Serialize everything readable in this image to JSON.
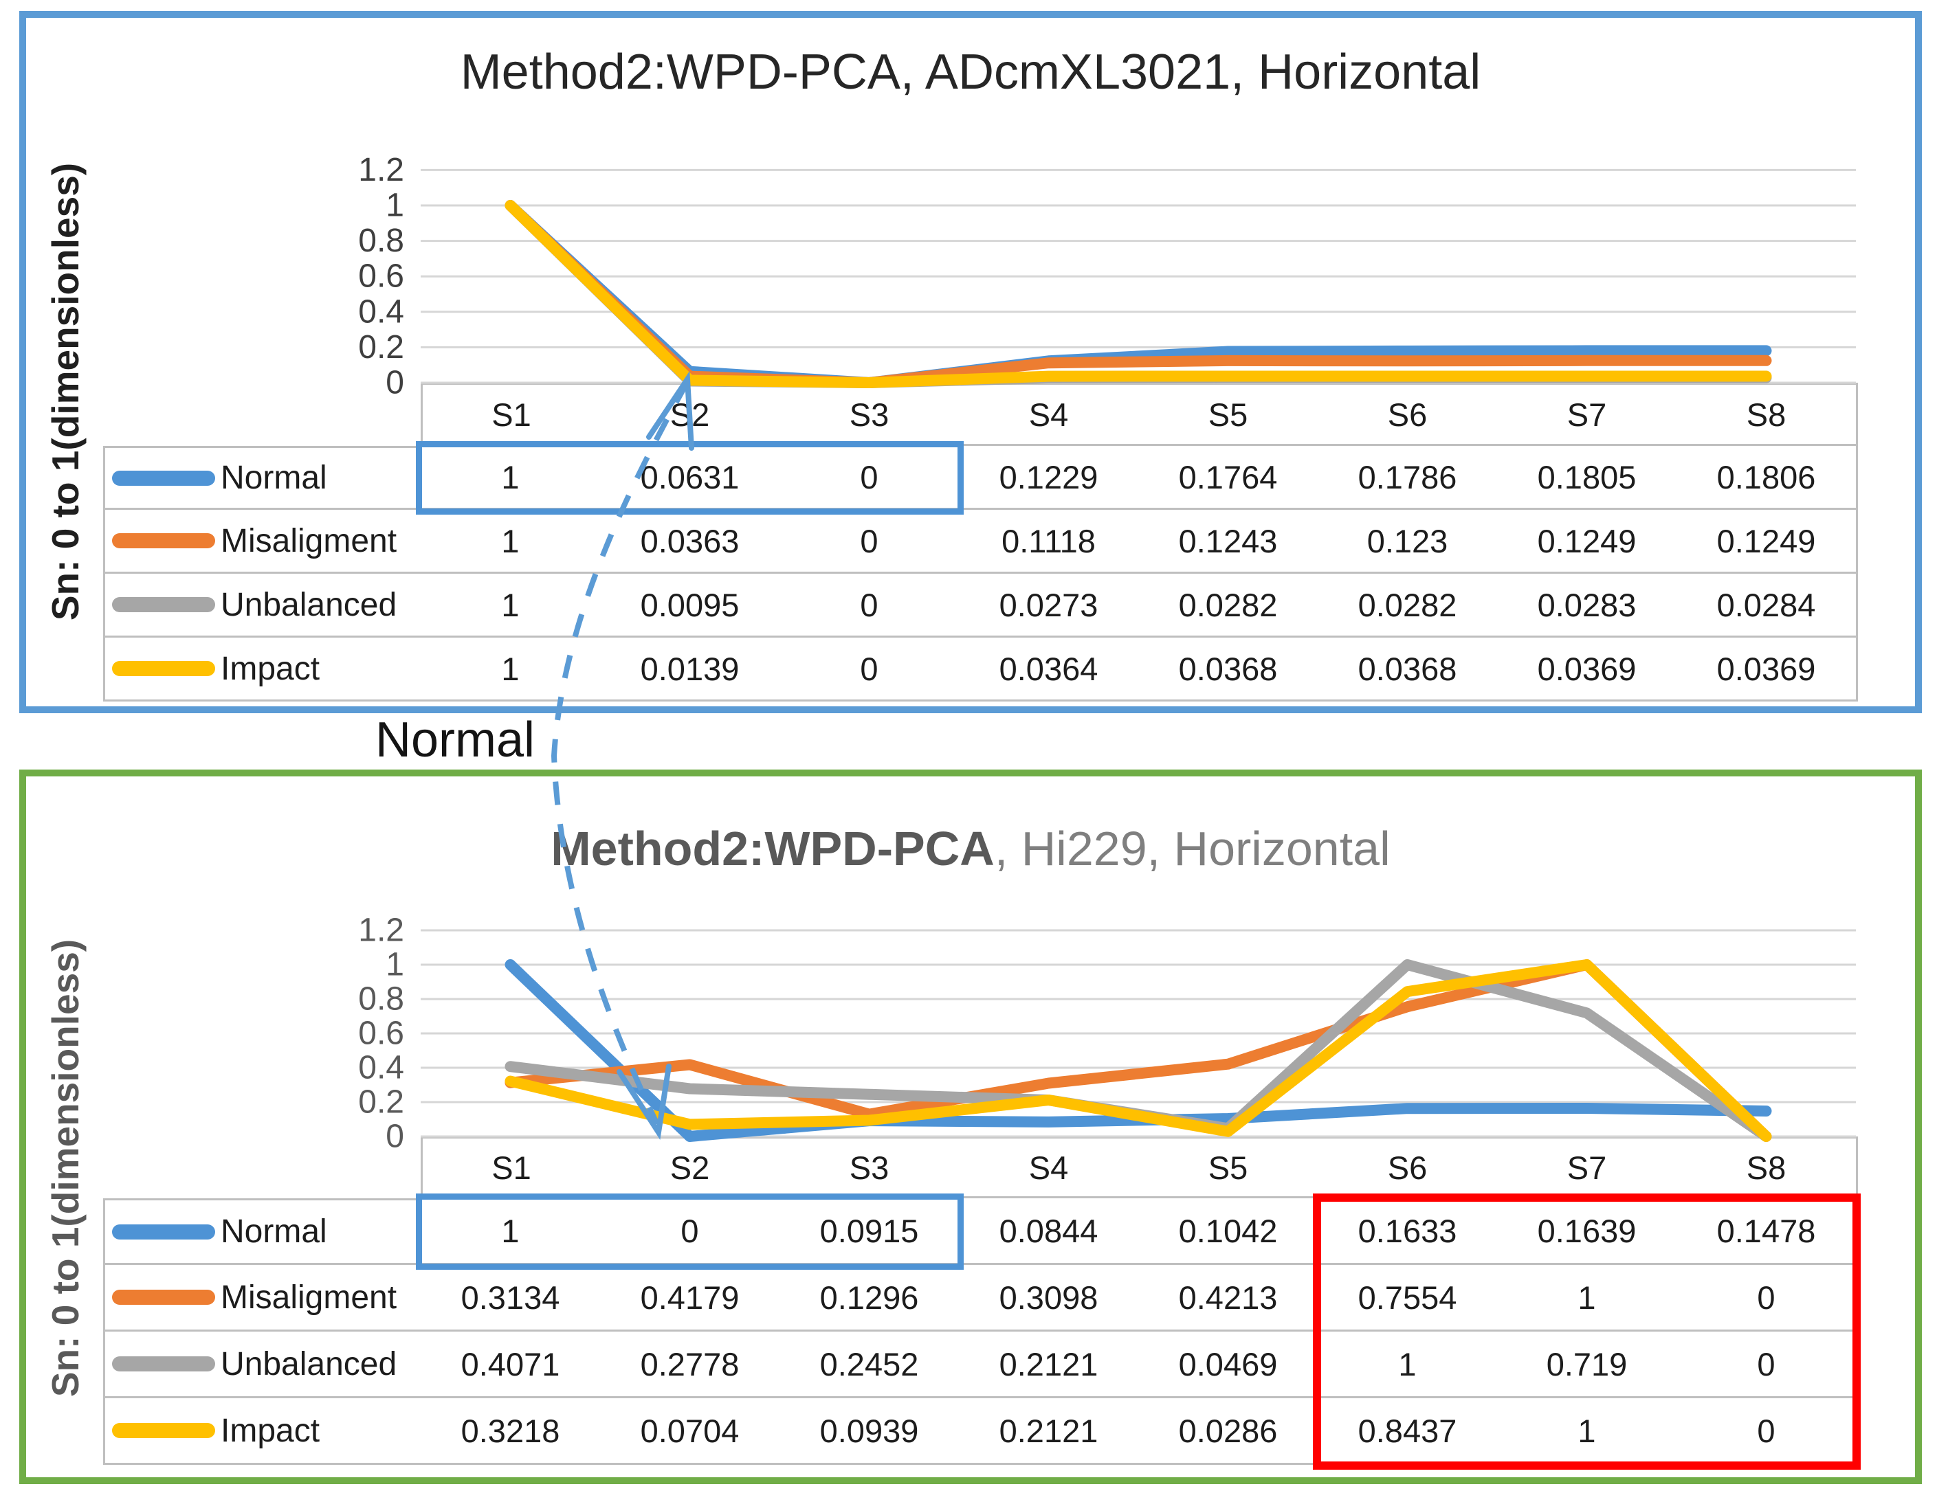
{
  "figure": {
    "description": "Two stacked Excel line charts with data tables comparing fault-signature values per segment",
    "annotation": {
      "label": "Normal",
      "connector_color": "#5B9BD5",
      "connector_style": "dashed-curved-double-arrow",
      "points_to": "Normal series S1-S3 cells highlighted in both charts"
    }
  },
  "chart_data": [
    {
      "type": "line",
      "title": "Method2:WPD-PCA, ADcmXL3021, Horizontal",
      "title_segments": [
        {
          "text": "Method2:WPD-PCA, ADcmXL3021, Horizontal",
          "color": "#262626",
          "bold": false
        }
      ],
      "ylabel": "Sn: 0 to 1(dimensionless)",
      "ylabel_color": "#1f1f1f",
      "axis_text_color": "#3f3f3f",
      "frame_color": "#5B9BD5",
      "categories": [
        "S1",
        "S2",
        "S3",
        "S4",
        "S5",
        "S6",
        "S7",
        "S8"
      ],
      "y_ticks": [
        "1.2",
        "1",
        "0.8",
        "0.6",
        "0.4",
        "0.2",
        "0"
      ],
      "ylim": [
        0,
        1.2
      ],
      "grid": true,
      "legend_position": "table-left",
      "data_table_shown": true,
      "series": [
        {
          "name": "Normal",
          "color": "#4E93D5",
          "values": [
            1,
            0.0631,
            0,
            0.1229,
            0.1764,
            0.1786,
            0.1805,
            0.1806
          ]
        },
        {
          "name": "Misaligment",
          "color": "#ED7D31",
          "values": [
            1,
            0.0363,
            0,
            0.1118,
            0.1243,
            0.123,
            0.1249,
            0.1249
          ]
        },
        {
          "name": "Unbalanced",
          "color": "#A6A6A6",
          "values": [
            1,
            0.0095,
            0,
            0.0273,
            0.0282,
            0.0282,
            0.0283,
            0.0284
          ]
        },
        {
          "name": "Impact",
          "color": "#FFC000",
          "values": [
            1,
            0.0139,
            0,
            0.0364,
            0.0368,
            0.0368,
            0.0369,
            0.0369
          ]
        }
      ],
      "highlights": [
        {
          "name": "blue-box-normal-s1-s3",
          "color": "#4E93D5",
          "rows": [
            0,
            0
          ],
          "cols": [
            0,
            2
          ],
          "thickness": 9
        }
      ]
    },
    {
      "type": "line",
      "title": "Method2:WPD-PCA, Hi229, Horizontal",
      "title_segments": [
        {
          "text": "Method2:WPD-PCA",
          "color": "#595959",
          "bold": true
        },
        {
          "text": ", Hi229, Horizontal",
          "color": "#7f7f7f",
          "bold": false
        }
      ],
      "ylabel": "Sn: 0 to 1(dimensionless)",
      "ylabel_color": "#595959",
      "axis_text_color": "#595959",
      "frame_color": "#70AD47",
      "categories": [
        "S1",
        "S2",
        "S3",
        "S4",
        "S5",
        "S6",
        "S7",
        "S8"
      ],
      "y_ticks": [
        "1.2",
        "1",
        "0.8",
        "0.6",
        "0.4",
        "0.2",
        "0"
      ],
      "ylim": [
        0,
        1.2
      ],
      "grid": true,
      "legend_position": "table-left",
      "data_table_shown": true,
      "series": [
        {
          "name": "Normal",
          "color": "#4E93D5",
          "values": [
            1,
            0,
            0.0915,
            0.0844,
            0.1042,
            0.1633,
            0.1639,
            0.1478
          ]
        },
        {
          "name": "Misaligment",
          "color": "#ED7D31",
          "values": [
            0.3134,
            0.4179,
            0.1296,
            0.3098,
            0.4213,
            0.7554,
            1,
            0
          ]
        },
        {
          "name": "Unbalanced",
          "color": "#A6A6A6",
          "values": [
            0.4071,
            0.2778,
            0.2452,
            0.2121,
            0.0469,
            1,
            0.719,
            0
          ]
        },
        {
          "name": "Impact",
          "color": "#FFC000",
          "values": [
            0.3218,
            0.0704,
            0.0939,
            0.2121,
            0.0286,
            0.8437,
            1,
            0
          ]
        }
      ],
      "highlights": [
        {
          "name": "blue-box-normal-s1-s3",
          "color": "#4E93D5",
          "rows": [
            0,
            0
          ],
          "cols": [
            0,
            2
          ],
          "thickness": 9
        },
        {
          "name": "red-box-s6-s8-all-rows",
          "color": "#FF0000",
          "rows": [
            0,
            3
          ],
          "cols": [
            5,
            7
          ],
          "thickness": 12
        }
      ]
    }
  ]
}
